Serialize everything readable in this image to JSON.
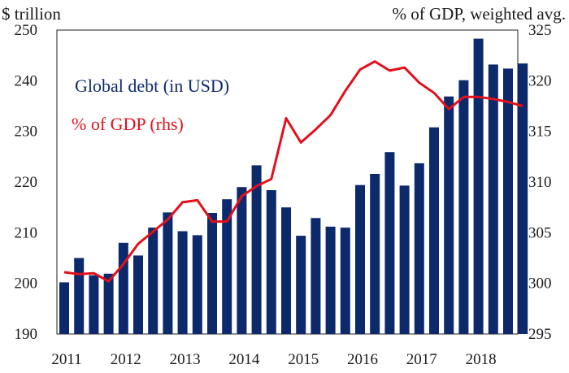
{
  "chart_data": {
    "type": "bar+line",
    "left_axis_label": "$ trillion",
    "right_axis_label": "% of GDP, weighted avg.",
    "left_ylim": [
      190,
      250
    ],
    "right_ylim": [
      295,
      325
    ],
    "left_ticks": [
      190,
      200,
      210,
      220,
      230,
      240,
      250
    ],
    "right_ticks": [
      295,
      300,
      305,
      310,
      315,
      320,
      325
    ],
    "year_labels": [
      "2011",
      "2012",
      "2013",
      "2014",
      "2015",
      "2016",
      "2017",
      "2018"
    ],
    "series": [
      {
        "name": "Global debt (in USD)",
        "type": "bar",
        "axis": "left",
        "color": "#0c2a6b",
        "values": [
          200.2,
          205.0,
          201.6,
          201.9,
          208.0,
          205.5,
          211.0,
          214.0,
          210.3,
          209.5,
          213.9,
          216.6,
          219.0,
          223.3,
          218.4,
          215.0,
          209.4,
          212.9,
          211.2,
          211.0,
          219.4,
          221.6,
          225.9,
          219.3,
          223.7,
          230.8,
          236.9,
          240.1,
          248.3,
          243.2,
          242.4,
          243.4
        ]
      },
      {
        "name": "% of GDP (rhs)",
        "type": "line",
        "axis": "right",
        "color": "#e3101b",
        "values": [
          301.1,
          300.9,
          301.0,
          300.2,
          301.9,
          303.9,
          305.1,
          306.3,
          308.0,
          308.2,
          306.1,
          306.1,
          308.6,
          309.6,
          310.3,
          316.3,
          313.9,
          315.2,
          316.6,
          319.0,
          321.1,
          321.9,
          321.0,
          321.3,
          319.8,
          318.8,
          317.2,
          318.4,
          318.4,
          318.2,
          317.9,
          317.5
        ]
      }
    ]
  }
}
